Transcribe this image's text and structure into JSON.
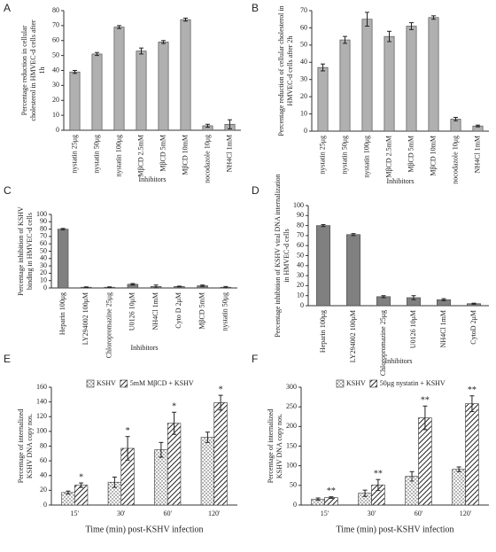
{
  "chart_data": [
    {
      "type": "bar",
      "panel": "A",
      "ylabel": [
        "Percentage reduction in cellular",
        "cholesterol in HMVEC-d cells after",
        "1h"
      ],
      "xlabel": "Inhibitors",
      "categories": [
        "nystatin 25μg",
        "nystatin 50μg",
        "nystatin 100μg",
        "MβCD 2.5mM",
        "MβCD 5mM",
        "MβCD 10mM",
        "nocodazole 10μg",
        "NH4Cl 1mM"
      ],
      "values": [
        39,
        51,
        69,
        53,
        59,
        74,
        3,
        4
      ],
      "errors": [
        1,
        1,
        1,
        2,
        1,
        1,
        1,
        3
      ],
      "color": "#b0b0b0",
      "ylim": [
        0,
        80
      ],
      "yticks": [
        0,
        10,
        20,
        30,
        40,
        50,
        60,
        70,
        80
      ]
    },
    {
      "type": "bar",
      "panel": "B",
      "ylabel": [
        "Percentage reduction of cellular cholesterol in",
        "HMVEC-d cells after 2h"
      ],
      "xlabel": "Inhibitors",
      "categories": [
        "nystatin 25μg",
        "nystatin 50μg",
        "nystatin 100μg",
        "MβCD 2.5mM",
        "MβCD 5mM",
        "MβCD 10mM",
        "nocodazole 10μg",
        "NH4Cl 1mM"
      ],
      "values": [
        37,
        53,
        65,
        55,
        61,
        66,
        7,
        3
      ],
      "errors": [
        2,
        2,
        4,
        3,
        2,
        1,
        1,
        0.5
      ],
      "color": "#b0b0b0",
      "ylim": [
        0,
        70
      ],
      "yticks": [
        0,
        10,
        20,
        30,
        40,
        50,
        60,
        70
      ]
    },
    {
      "type": "bar",
      "panel": "C",
      "ylabel": [
        "Percentage inhibition of KSHV",
        "binding in HMVEC-d cells"
      ],
      "xlabel": "Inhibitors",
      "categories": [
        "Heparin 100μg",
        "LY294002 100μM",
        "Chloropromazine 25μg",
        "U0126 10μM",
        "NH4Cl 1mM",
        "Cyto D 2μM",
        "MβCD 5mM",
        "nystatin 50μg"
      ],
      "values": [
        80,
        1,
        1,
        5,
        2,
        2,
        3,
        1
      ],
      "errors": [
        1,
        0.5,
        0.5,
        1,
        2,
        0.5,
        1,
        1
      ],
      "color": "#808080",
      "ylim": [
        0,
        100
      ],
      "yticks": [
        0,
        10,
        20,
        30,
        40,
        50,
        60,
        70,
        80,
        90,
        100
      ]
    },
    {
      "type": "bar",
      "panel": "D",
      "ylabel": [
        "Percentage inhibition of KSHV viral DNA internalization",
        "in HMVEC-d cells"
      ],
      "xlabel": "Inhibitors",
      "categories": [
        "Heparin 100μg",
        "LY294002 100μM",
        "Chloropromazine 25μg",
        "U0126 10μM",
        "NH4Cl 1mM",
        "CytoD 2μM"
      ],
      "values": [
        80,
        71,
        9,
        8,
        6,
        2
      ],
      "errors": [
        1,
        1,
        1,
        2,
        1,
        0.5
      ],
      "color": "#808080",
      "ylim": [
        0,
        100
      ],
      "yticks": [
        0,
        10,
        20,
        30,
        40,
        50,
        60,
        70,
        80,
        90,
        100
      ]
    },
    {
      "type": "grouped_bar",
      "panel": "E",
      "ylabel": [
        "Percentage of internalized",
        "KSHV DNA copy nos."
      ],
      "xlabel": "Time (min) post-KSHV infection",
      "categories": [
        "15'",
        "30'",
        "60'",
        "120'"
      ],
      "legend": "top",
      "series": [
        {
          "name": "KSHV",
          "color": "#ffffff",
          "pattern": "dots",
          "values": [
            17,
            31,
            75,
            92
          ],
          "errors": [
            2,
            7,
            10,
            7
          ]
        },
        {
          "name": "5mM MβCD + KSHV",
          "color": "#ffffff",
          "pattern": "hatch",
          "values": [
            27,
            77,
            111,
            139
          ],
          "errors": [
            3,
            16,
            15,
            10
          ]
        }
      ],
      "annotations": [
        "*",
        "*",
        "*",
        "*"
      ],
      "ylim": [
        0,
        160
      ],
      "yticks": [
        0,
        20,
        40,
        60,
        80,
        100,
        120,
        140,
        160
      ]
    },
    {
      "type": "grouped_bar",
      "panel": "F",
      "ylabel": [
        "Percentage of internalized",
        "KSHV DNA copy nos."
      ],
      "xlabel": "Time (min) post-KSHV infection",
      "categories": [
        "15'",
        "30'",
        "60'",
        "120'"
      ],
      "legend": "top",
      "series": [
        {
          "name": "KSHV",
          "color": "#ffffff",
          "pattern": "dots",
          "values": [
            15,
            30,
            73,
            91
          ],
          "errors": [
            3,
            8,
            12,
            6
          ]
        },
        {
          "name": "50μg nystatin + KSHV",
          "color": "#ffffff",
          "pattern": "hatch",
          "values": [
            19,
            51,
            222,
            258
          ],
          "errors": [
            2,
            14,
            30,
            20
          ]
        }
      ],
      "annotations": [
        "**",
        "**",
        "**",
        "**"
      ],
      "ylim": [
        0,
        300
      ],
      "yticks": [
        0,
        50,
        100,
        150,
        200,
        250,
        300
      ]
    }
  ]
}
